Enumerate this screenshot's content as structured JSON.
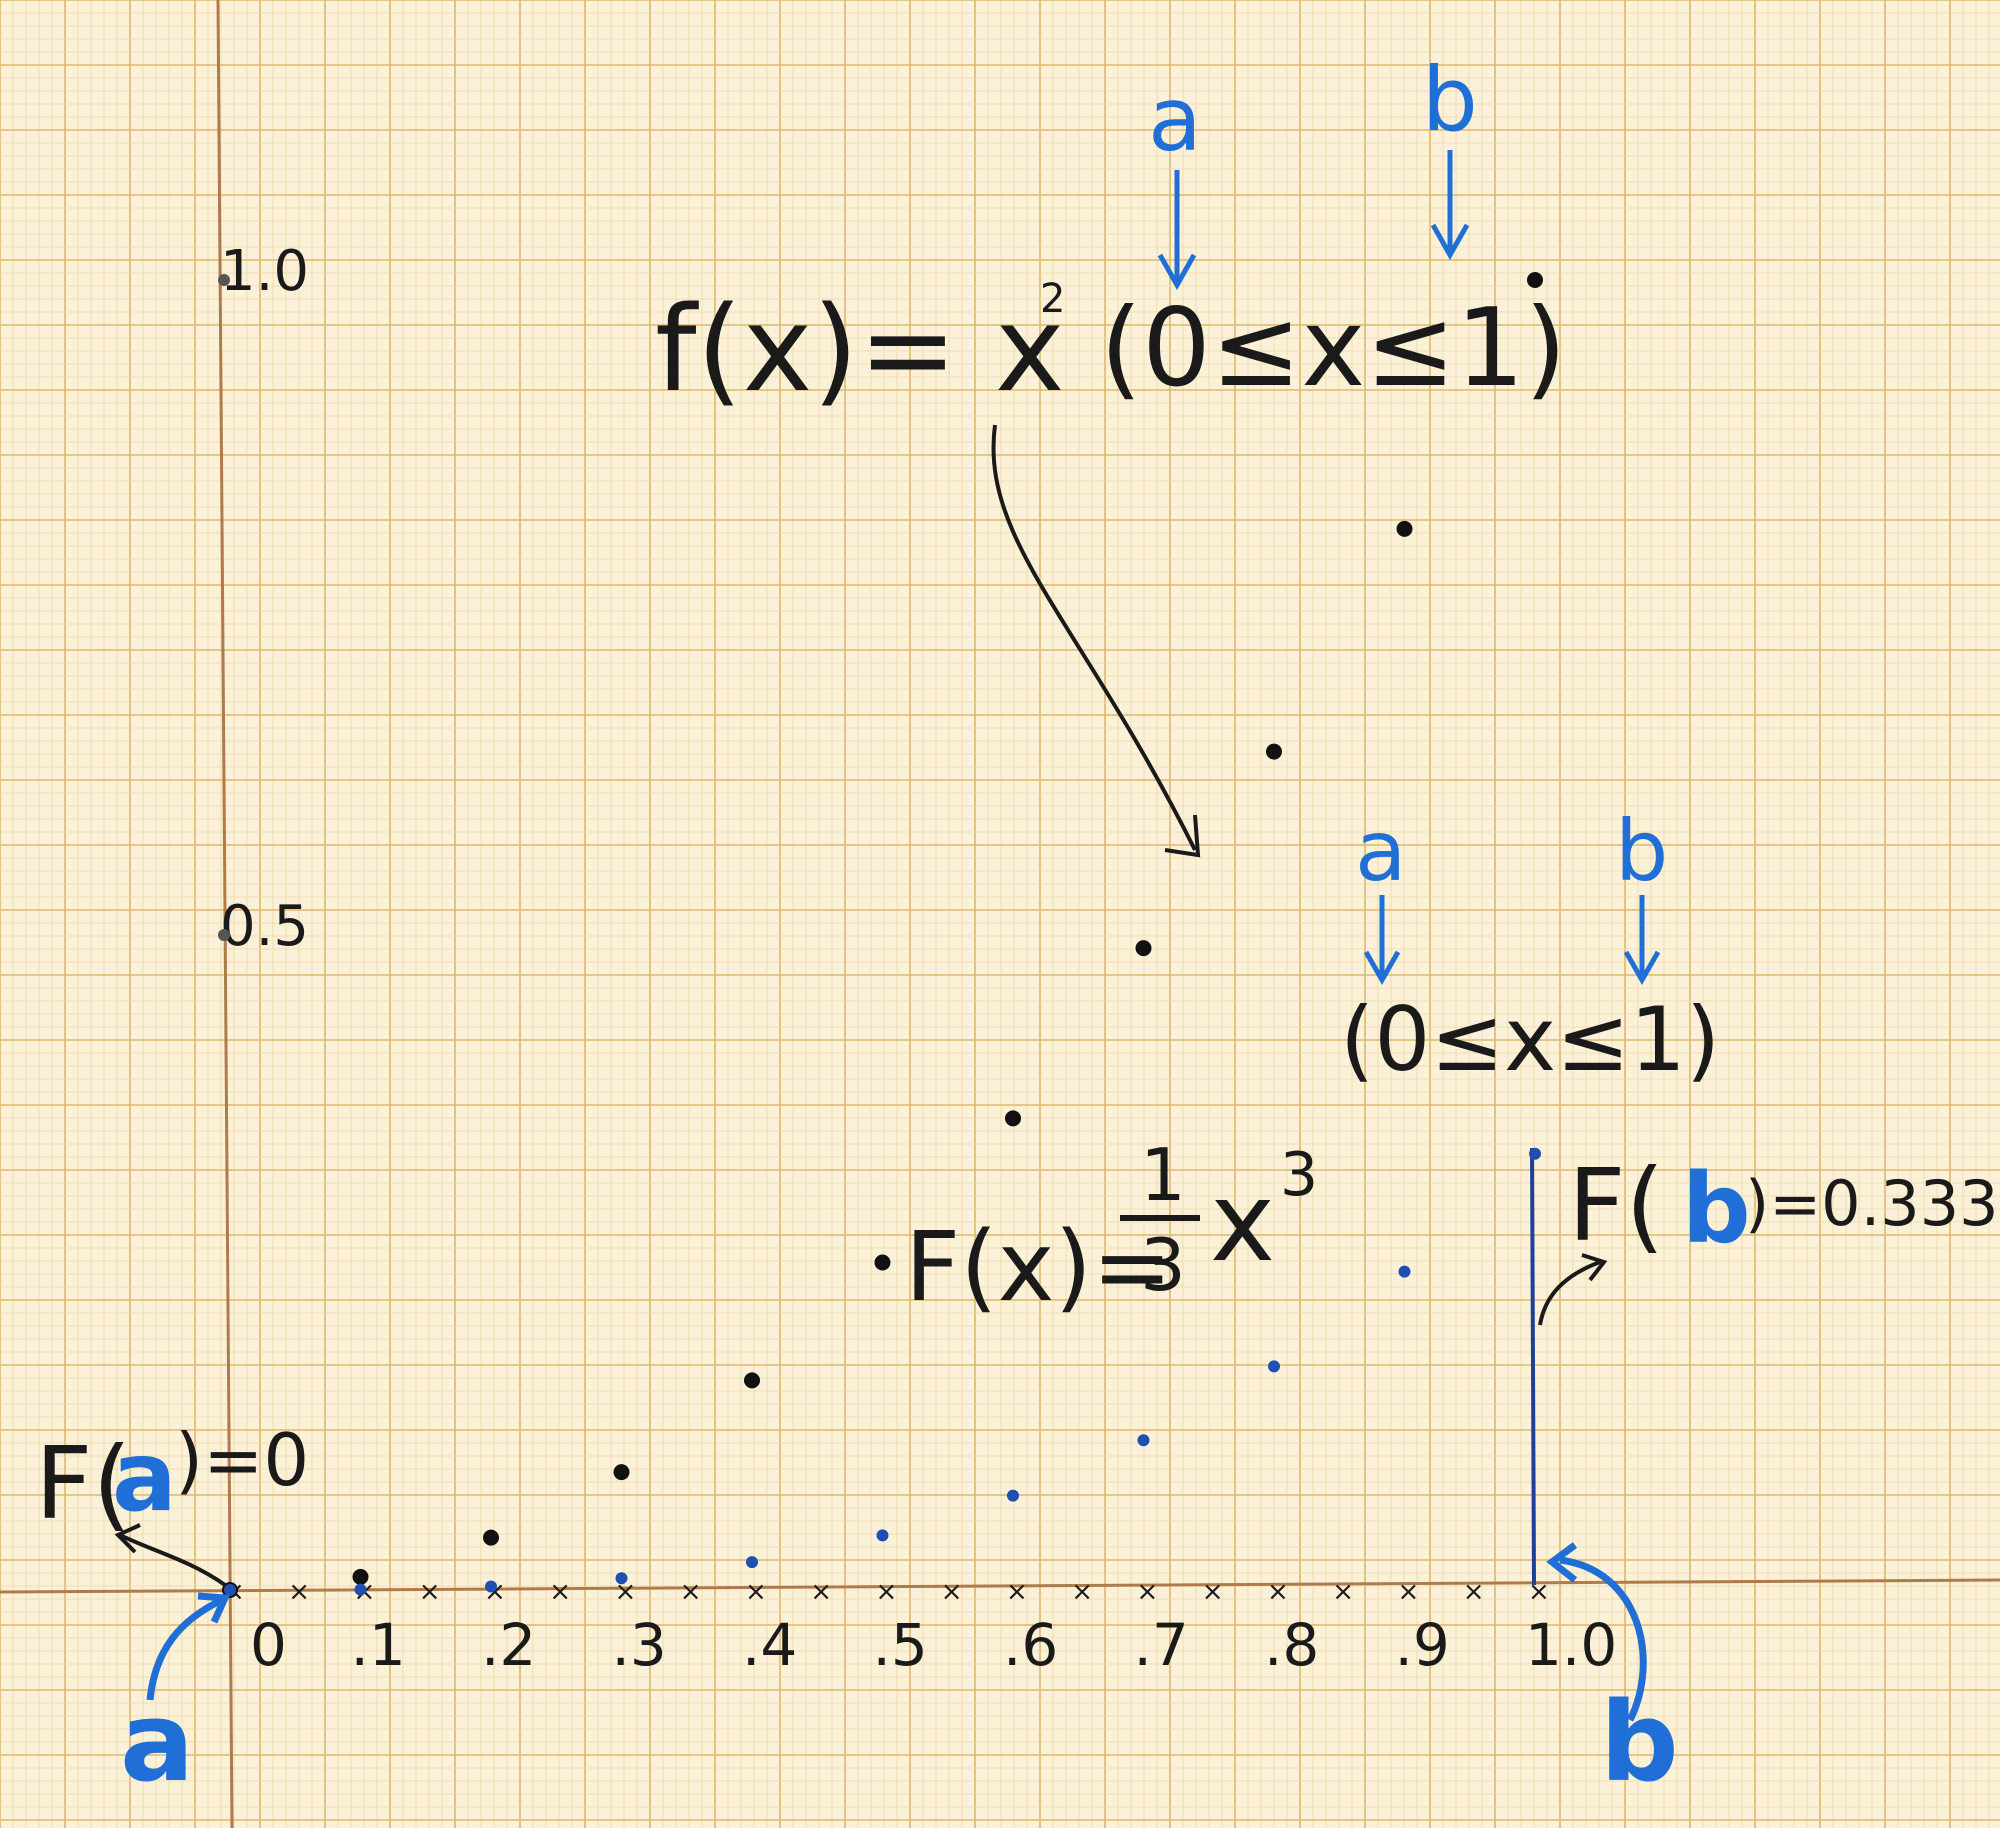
{
  "chart_data": {
    "type": "scatter",
    "x_ticks": [
      "0",
      ".1",
      ".2",
      ".3",
      ".4",
      ".5",
      ".6",
      ".7",
      ".8",
      ".9",
      "1.0"
    ],
    "y_ticks": [
      "0.5",
      "1.0"
    ],
    "xlim": [
      0,
      1
    ],
    "ylim": [
      0,
      1
    ],
    "grid": true,
    "series": [
      {
        "color": "#111111",
        "x": [
          0,
          0.1,
          0.2,
          0.3,
          0.4,
          0.5,
          0.6,
          0.7,
          0.8,
          0.9,
          1.0
        ],
        "y": [
          0,
          0.01,
          0.04,
          0.09,
          0.16,
          0.25,
          0.36,
          0.49,
          0.64,
          0.81,
          1.0
        ]
      },
      {
        "color": "#1f4fb0",
        "x": [
          0,
          0.1,
          0.2,
          0.3,
          0.4,
          0.5,
          0.6,
          0.7,
          0.8,
          0.9,
          1.0
        ],
        "y": [
          0,
          0.0003,
          0.0027,
          0.009,
          0.0213,
          0.0417,
          0.072,
          0.1143,
          0.1707,
          0.243,
          0.333
        ]
      }
    ]
  },
  "annotations": {
    "f_formula": "f(x)= x",
    "f_exp": "2",
    "f_domain": "(0≤x≤1)",
    "f_a": "a",
    "f_b": "b",
    "F_formula_left": "F(x)=",
    "F_frac_num": "1",
    "F_frac_den": "3",
    "F_formula_x": "x",
    "F_exp": "3",
    "F_domain": "(0≤x≤1)",
    "F_a": "a",
    "F_b": "b",
    "Fa_pre": "F(",
    "Fa_var": "a",
    "Fa_post": ")=0",
    "Fb_pre": "F(",
    "Fb_var": "b",
    "Fb_post": ")=0.333",
    "a_bottom": "a",
    "b_bottom": "b"
  },
  "colors": {
    "ink": "#1a1a1a",
    "blue": "#1f6fd6",
    "dark_blue": "#1f4fb0",
    "grid_minor": "#ecd9a8",
    "grid_major": "#deb86a",
    "paper": "#fbf1d8"
  }
}
